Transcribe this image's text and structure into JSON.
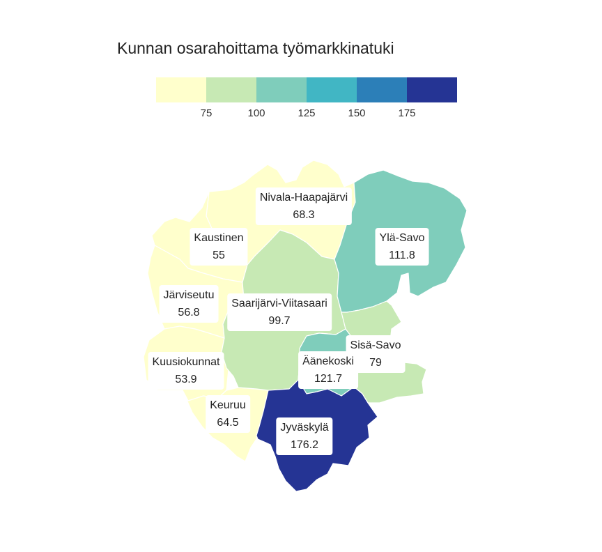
{
  "title": "Kunnan osarahoittama työmarkkinatuki",
  "legend": {
    "colors": [
      "#ffffcc",
      "#c7e9b4",
      "#7fcdbb",
      "#41b6c4",
      "#2c7fb8",
      "#253494"
    ],
    "ticks": [
      "75",
      "100",
      "125",
      "150",
      "175"
    ]
  },
  "regions": [
    {
      "name": "Nivala-Haapajärvi",
      "value": "68.3",
      "color": "#ffffcc"
    },
    {
      "name": "Ylä-Savo",
      "value": "111.8",
      "color": "#7fcdbb"
    },
    {
      "name": "Kaustinen",
      "value": "55",
      "color": "#ffffcc"
    },
    {
      "name": "Järviseutu",
      "value": "56.8",
      "color": "#ffffcc"
    },
    {
      "name": "Saarijärvi-Viitasaari",
      "value": "99.7",
      "color": "#c7e9b4"
    },
    {
      "name": "Sisä-Savo",
      "value": "79",
      "color": "#c7e9b4"
    },
    {
      "name": "Äänekoski",
      "value": "121.7",
      "color": "#7fcdbb"
    },
    {
      "name": "Kuusiokunnat",
      "value": "53.9",
      "color": "#ffffcc"
    },
    {
      "name": "Keuruu",
      "value": "64.5",
      "color": "#ffffcc"
    },
    {
      "name": "Jyväskylä",
      "value": "176.2",
      "color": "#253494"
    }
  ]
}
